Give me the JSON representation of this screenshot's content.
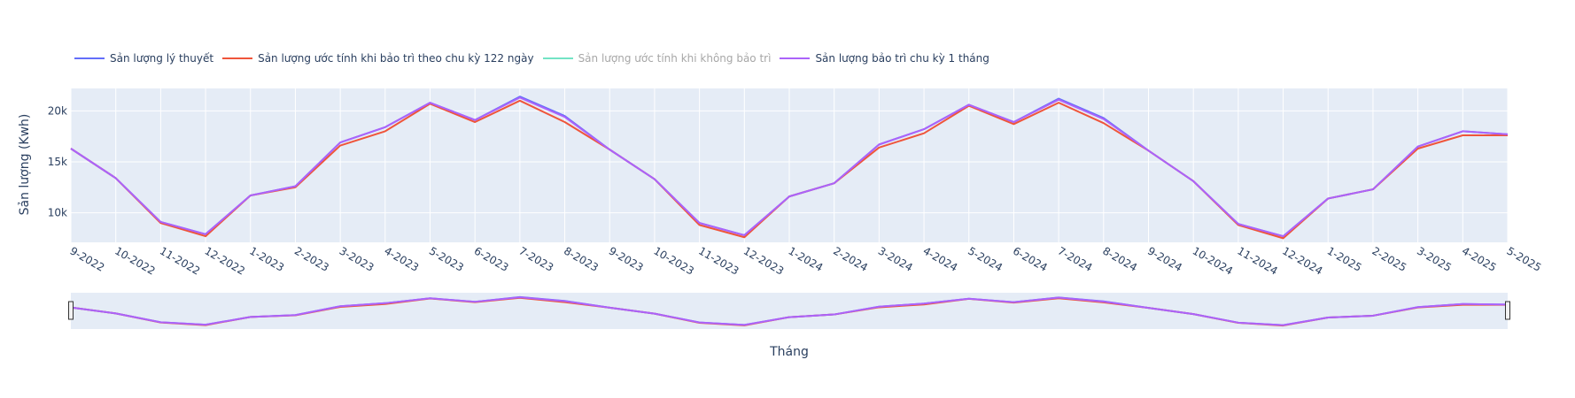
{
  "chart_data": {
    "type": "line",
    "title": "",
    "xlabel": "Tháng",
    "ylabel": "Sản lượng (Kwh)",
    "ylim": [
      7100,
      22200
    ],
    "yticks": [
      10000,
      15000,
      20000
    ],
    "ytick_labels": [
      "10k",
      "15k",
      "20k"
    ],
    "categories": [
      "9-2022",
      "10-2022",
      "11-2022",
      "12-2022",
      "1-2023",
      "2-2023",
      "3-2023",
      "4-2023",
      "5-2023",
      "6-2023",
      "7-2023",
      "8-2023",
      "9-2023",
      "10-2023",
      "11-2023",
      "12-2023",
      "1-2024",
      "2-2024",
      "3-2024",
      "4-2024",
      "5-2024",
      "6-2024",
      "7-2024",
      "8-2024",
      "9-2024",
      "10-2024",
      "11-2024",
      "12-2024",
      "1-2025",
      "2-2025",
      "3-2025",
      "4-2025",
      "5-2025"
    ],
    "grid": true,
    "legend_position": "top-left",
    "rangeslider": true,
    "series": [
      {
        "name": "Sản lượng lý thuyết",
        "color": "#636efa",
        "visible": true,
        "values": [
          16300,
          13400,
          9100,
          7900,
          11700,
          12600,
          16900,
          18400,
          20800,
          19100,
          21400,
          19500,
          16200,
          13300,
          9000,
          7800,
          11600,
          12900,
          16700,
          18200,
          20600,
          18900,
          21200,
          19300,
          16100,
          13100,
          8900,
          7700,
          11400,
          12300,
          16500,
          18000,
          17700
        ]
      },
      {
        "name": "Sản lượng ước tính khi bảo trì theo chu kỳ 122 ngày",
        "color": "#ef553b",
        "visible": true,
        "values": [
          16300,
          13400,
          9000,
          7700,
          11700,
          12500,
          16600,
          18000,
          20700,
          18900,
          21000,
          18900,
          16200,
          13300,
          8800,
          7600,
          11600,
          12900,
          16400,
          17800,
          20500,
          18700,
          20800,
          18800,
          16100,
          13100,
          8800,
          7500,
          11400,
          12300,
          16300,
          17600,
          17600
        ]
      },
      {
        "name": "Sản lượng ước tính khi không bảo trì",
        "color": "#00cc96",
        "visible": false,
        "values": [
          16300,
          13400,
          9100,
          7900,
          11700,
          12600,
          16900,
          18400,
          20800,
          19100,
          21400,
          19500,
          16200,
          13300,
          9000,
          7800,
          11600,
          12900,
          16700,
          18200,
          20600,
          18900,
          21200,
          19300,
          16100,
          13100,
          8900,
          7700,
          11400,
          12300,
          16500,
          18000,
          17700
        ]
      },
      {
        "name": "Sản lượng bảo trì chu kỳ 1 tháng",
        "color": "#ab63fa",
        "visible": true,
        "values": [
          16300,
          13400,
          9100,
          7900,
          11700,
          12600,
          16900,
          18400,
          20800,
          19100,
          21300,
          19400,
          16200,
          13300,
          9000,
          7800,
          11600,
          12900,
          16700,
          18200,
          20600,
          18900,
          21100,
          19200,
          16100,
          13100,
          8900,
          7700,
          11400,
          12300,
          16500,
          18000,
          17700
        ]
      }
    ]
  }
}
